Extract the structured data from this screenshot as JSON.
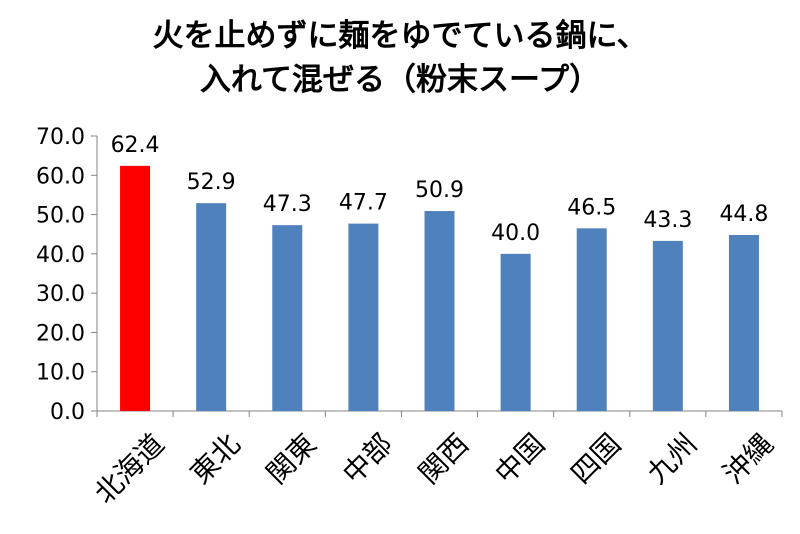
{
  "chart_data": {
    "type": "bar",
    "title_lines": [
      "火を止めずに麺をゆでている鍋に、",
      "入れて混ぜる（粉末スープ）"
    ],
    "categories": [
      "北海道",
      "東北",
      "関東",
      "中部",
      "関西",
      "中国",
      "四国",
      "九州",
      "沖縄"
    ],
    "values": [
      62.4,
      52.9,
      47.3,
      47.7,
      50.9,
      40.0,
      46.5,
      43.3,
      44.8
    ],
    "value_labels": [
      "62.4",
      "52.9",
      "47.3",
      "47.7",
      "50.9",
      "40.0",
      "46.5",
      "43.3",
      "44.8"
    ],
    "y_ticks": [
      "0.0",
      "10.0",
      "20.0",
      "30.0",
      "40.0",
      "50.0",
      "60.0",
      "70.0"
    ],
    "ylim": [
      0,
      70
    ],
    "y_step": 10,
    "grid": false,
    "colors": {
      "default": "#4f81bd",
      "highlight": "#ff0000",
      "highlight_index": 0
    }
  }
}
